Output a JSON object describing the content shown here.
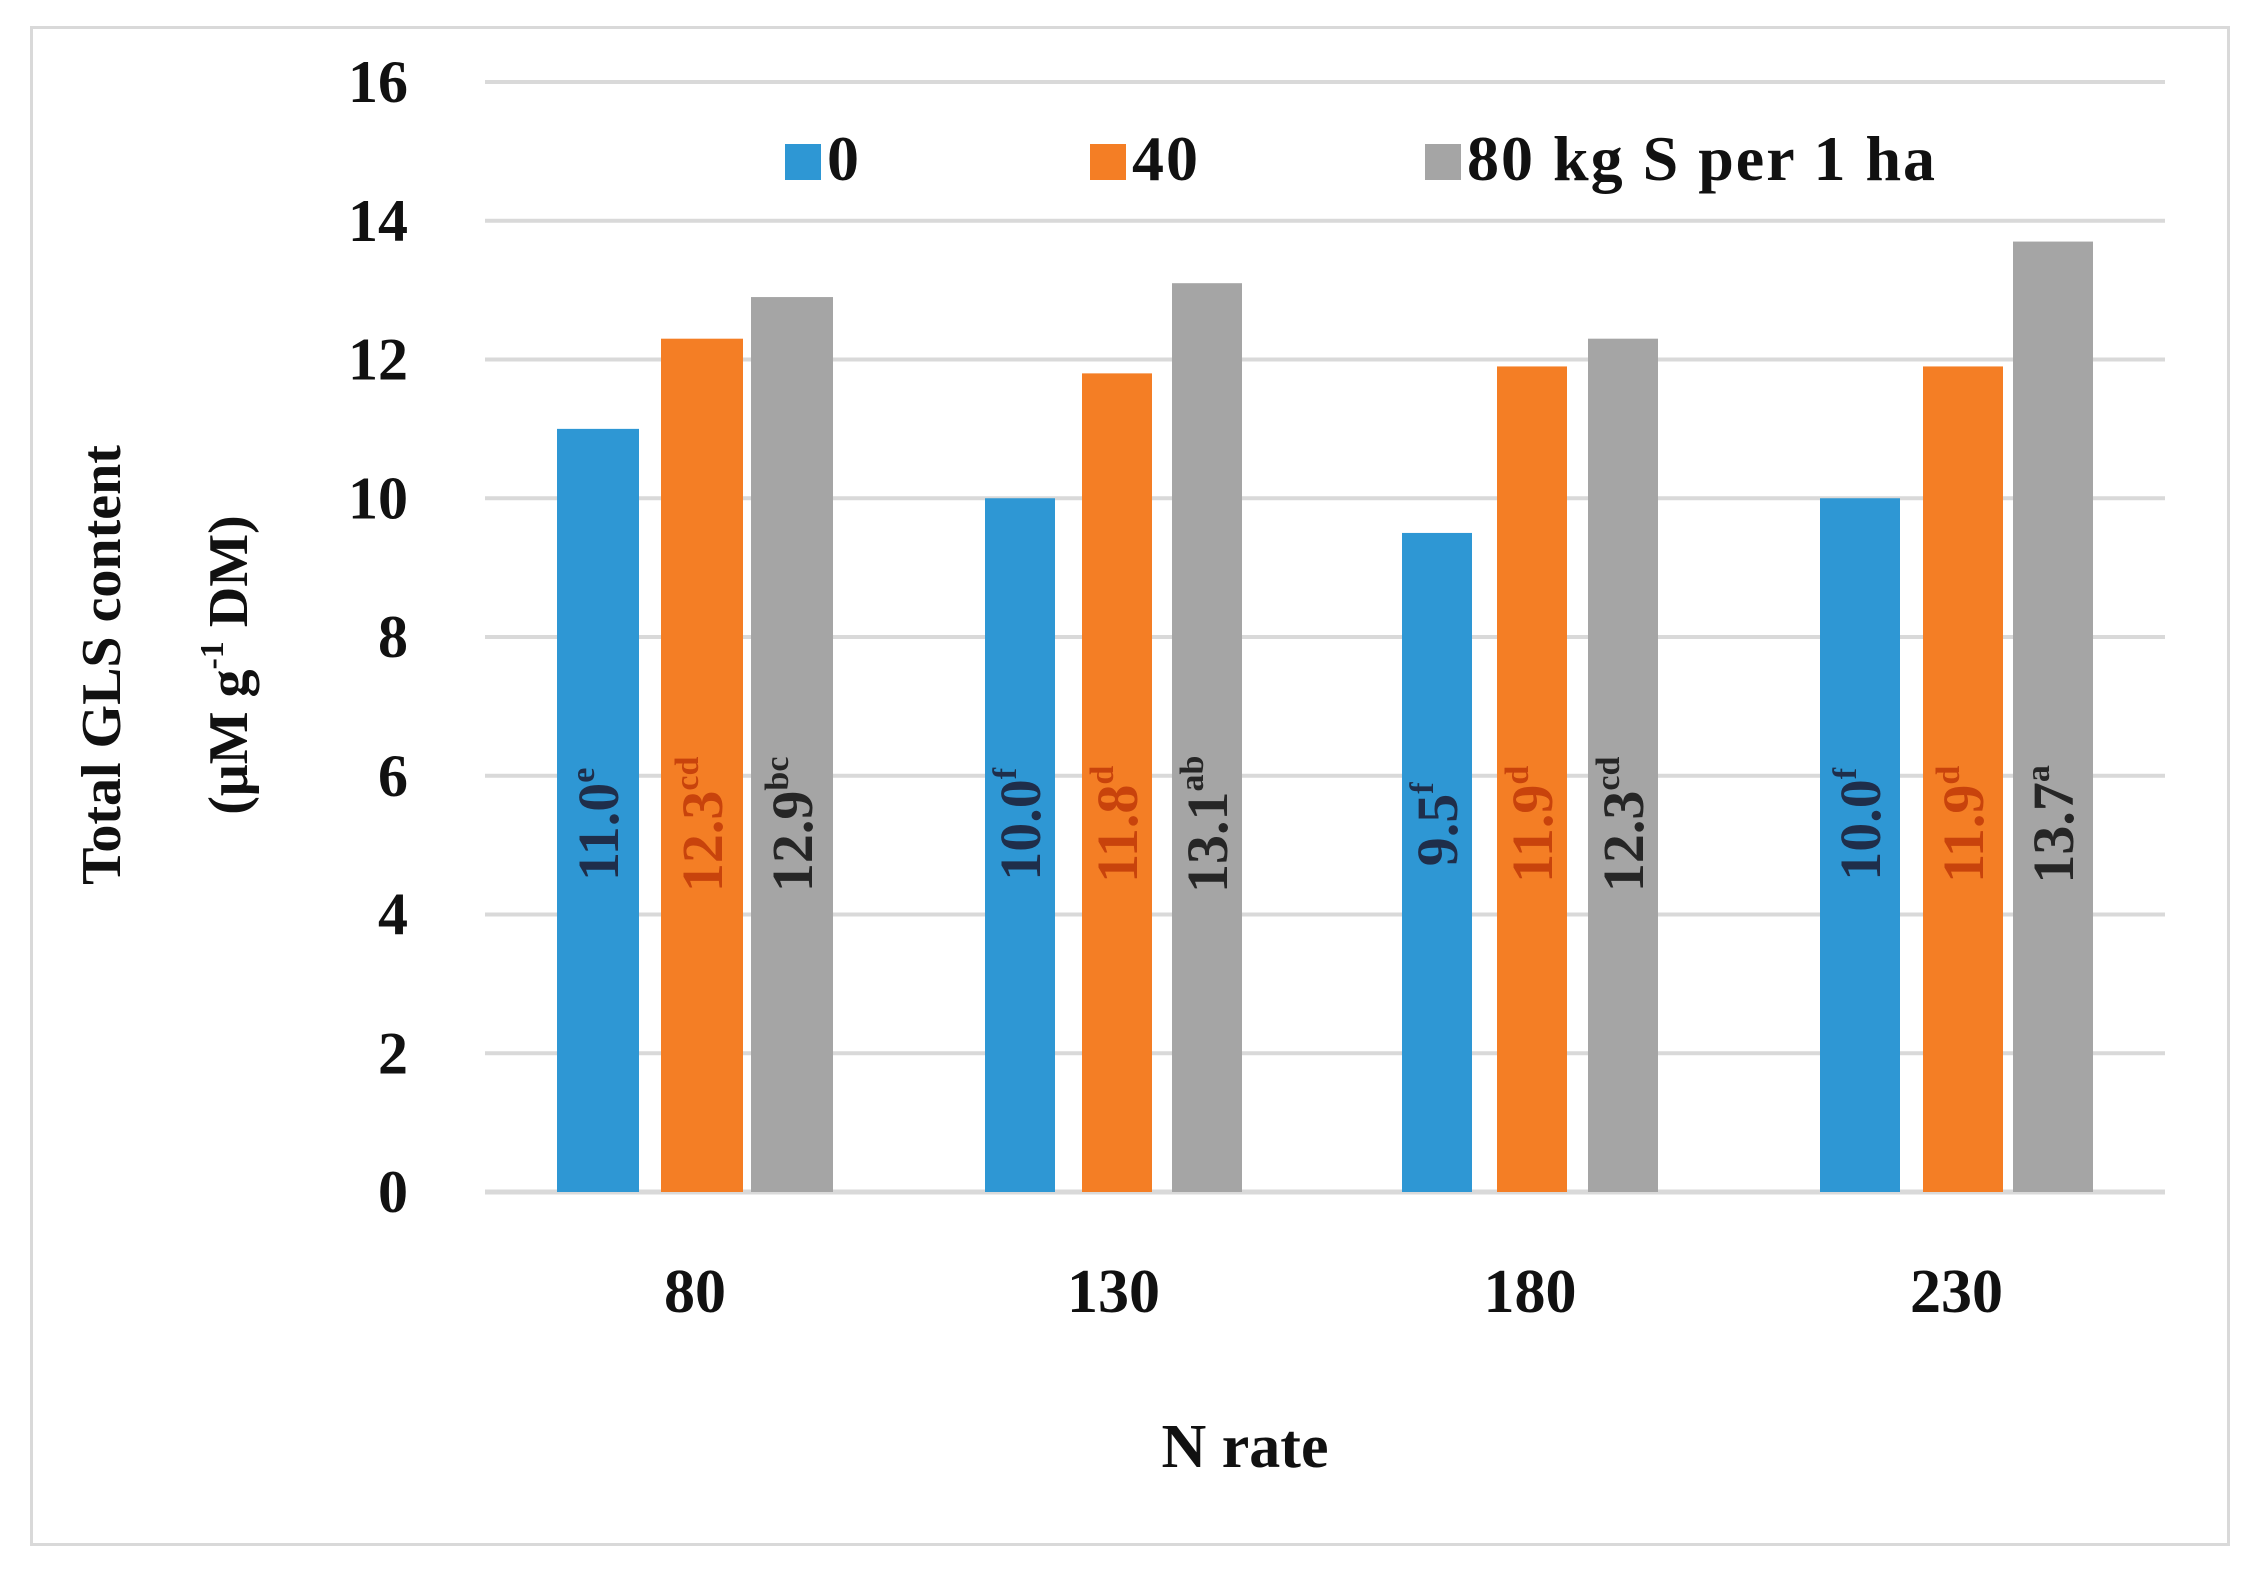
{
  "chart_data": {
    "type": "bar",
    "title": "",
    "xlabel": "N rate",
    "ylabel_line1": "Total GLS content",
    "ylabel_line2_prefix": "(μM g",
    "ylabel_line2_sup": "-1",
    "ylabel_line2_suffix": " DM)",
    "ylim": [
      0,
      16
    ],
    "yticks": [
      "0",
      "2",
      "4",
      "6",
      "8",
      "10",
      "12",
      "14",
      "16"
    ],
    "grid": true,
    "legend_position": "top",
    "categories": [
      "80",
      "130",
      "180",
      "230"
    ],
    "series": [
      {
        "name": "0",
        "color": "#2e97d4",
        "values": [
          11.0,
          10.0,
          9.5,
          10.0
        ],
        "labels": [
          "11.0",
          "10.0",
          "9.5",
          "10.0"
        ],
        "letters": [
          "e",
          "f",
          "f",
          "f"
        ]
      },
      {
        "name": "40",
        "color": "#f47e25",
        "values": [
          12.3,
          11.8,
          11.9,
          11.9
        ],
        "labels": [
          "12.3",
          "11.8",
          "11.9",
          "11.9"
        ],
        "letters": [
          "cd",
          "d",
          "d",
          "d"
        ]
      },
      {
        "name": "80 kg S per 1 ha",
        "color": "#a5a5a5",
        "values": [
          12.9,
          13.1,
          12.3,
          13.7
        ],
        "labels": [
          "12.9",
          "13.1",
          "12.3",
          "13.7"
        ],
        "letters": [
          "bc",
          "ab",
          "cd",
          "a"
        ]
      }
    ],
    "label_colors": [
      "#1f2e4a",
      "#c8430c",
      "#262626"
    ]
  }
}
